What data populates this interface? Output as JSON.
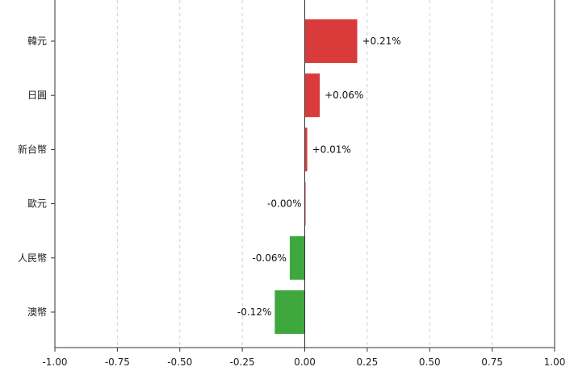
{
  "chart_data": {
    "type": "bar",
    "orientation": "horizontal",
    "categories": [
      "韓元",
      "日圓",
      "新台幣",
      "歐元",
      "人民幣",
      "澳幣"
    ],
    "values": [
      0.21,
      0.06,
      0.01,
      -0.0,
      -0.06,
      -0.12
    ],
    "data_labels": [
      "+0.21%",
      "+0.06%",
      "+0.01%",
      "-0.00%",
      "-0.06%",
      "-0.12%"
    ],
    "xlim": [
      -1.0,
      1.0
    ],
    "xticks": [
      "-1.00",
      "-0.75",
      "-0.50",
      "-0.25",
      "0.00",
      "0.25",
      "0.50",
      "0.75",
      "1.00"
    ],
    "grid": "vertical dashed",
    "colors": {
      "positive": "#d93b3b",
      "negative": "#3ea83e",
      "zero_line": "#333333",
      "grid": "#d0d0d0"
    }
  }
}
